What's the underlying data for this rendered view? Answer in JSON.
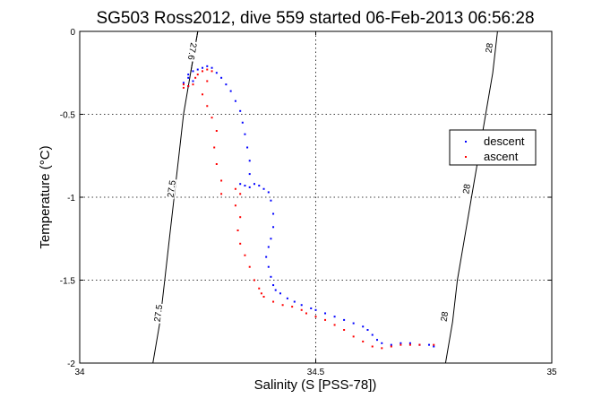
{
  "chart_data": {
    "type": "scatter",
    "title": "SG503 Ross2012, dive 559 started 06-Feb-2013 06:56:28",
    "xlabel": "Salinity (S [PSS-78])",
    "ylabel": "Temperature (°C)",
    "xlim": [
      34,
      35
    ],
    "ylim": [
      -2,
      0
    ],
    "xticks": [
      "34",
      "34.5",
      "35"
    ],
    "yticks": [
      "0",
      "-0.5",
      "-1",
      "-1.5",
      "-2"
    ],
    "grid": true,
    "legend_position": "right",
    "series": [
      {
        "name": "descent",
        "color": "#0000ff",
        "points": [
          [
            34.27,
            -0.21
          ],
          [
            34.26,
            -0.22
          ],
          [
            34.25,
            -0.23
          ],
          [
            34.24,
            -0.24
          ],
          [
            34.23,
            -0.26
          ],
          [
            34.23,
            -0.28
          ],
          [
            34.24,
            -0.3
          ],
          [
            34.22,
            -0.31
          ],
          [
            34.23,
            -0.33
          ],
          [
            34.28,
            -0.22
          ],
          [
            34.29,
            -0.25
          ],
          [
            34.3,
            -0.28
          ],
          [
            34.31,
            -0.32
          ],
          [
            34.32,
            -0.36
          ],
          [
            34.33,
            -0.42
          ],
          [
            34.34,
            -0.48
          ],
          [
            34.345,
            -0.55
          ],
          [
            34.35,
            -0.62
          ],
          [
            34.355,
            -0.7
          ],
          [
            34.36,
            -0.78
          ],
          [
            34.36,
            -0.86
          ],
          [
            34.34,
            -0.92
          ],
          [
            34.35,
            -0.93
          ],
          [
            34.36,
            -0.94
          ],
          [
            34.37,
            -0.92
          ],
          [
            34.38,
            -0.93
          ],
          [
            34.39,
            -0.95
          ],
          [
            34.4,
            -0.97
          ],
          [
            34.405,
            -1.02
          ],
          [
            34.41,
            -1.1
          ],
          [
            34.41,
            -1.18
          ],
          [
            34.405,
            -1.25
          ],
          [
            34.4,
            -1.3
          ],
          [
            34.395,
            -1.36
          ],
          [
            34.4,
            -1.42
          ],
          [
            34.405,
            -1.48
          ],
          [
            34.41,
            -1.53
          ],
          [
            34.415,
            -1.56
          ],
          [
            34.425,
            -1.58
          ],
          [
            34.44,
            -1.61
          ],
          [
            34.455,
            -1.63
          ],
          [
            34.47,
            -1.65
          ],
          [
            34.49,
            -1.67
          ],
          [
            34.5,
            -1.68
          ],
          [
            34.52,
            -1.7
          ],
          [
            34.54,
            -1.72
          ],
          [
            34.56,
            -1.74
          ],
          [
            34.58,
            -1.76
          ],
          [
            34.6,
            -1.78
          ],
          [
            34.61,
            -1.8
          ],
          [
            34.62,
            -1.83
          ],
          [
            34.63,
            -1.86
          ],
          [
            34.64,
            -1.88
          ],
          [
            34.66,
            -1.89
          ],
          [
            34.68,
            -1.88
          ],
          [
            34.7,
            -1.88
          ],
          [
            34.72,
            -1.89
          ],
          [
            34.74,
            -1.89
          ],
          [
            34.75,
            -1.9
          ]
        ]
      },
      {
        "name": "ascent",
        "color": "#ff0000",
        "points": [
          [
            34.22,
            -0.32
          ],
          [
            34.22,
            -0.34
          ],
          [
            34.23,
            -0.33
          ],
          [
            34.24,
            -0.32
          ],
          [
            34.245,
            -0.28
          ],
          [
            34.25,
            -0.26
          ],
          [
            34.26,
            -0.24
          ],
          [
            34.27,
            -0.23
          ],
          [
            34.28,
            -0.24
          ],
          [
            34.27,
            -0.3
          ],
          [
            34.26,
            -0.38
          ],
          [
            34.27,
            -0.45
          ],
          [
            34.28,
            -0.52
          ],
          [
            34.29,
            -0.6
          ],
          [
            34.285,
            -0.7
          ],
          [
            34.29,
            -0.8
          ],
          [
            34.3,
            -0.9
          ],
          [
            34.3,
            -0.98
          ],
          [
            34.33,
            -0.95
          ],
          [
            34.34,
            -0.98
          ],
          [
            34.33,
            -1.05
          ],
          [
            34.34,
            -1.12
          ],
          [
            34.335,
            -1.2
          ],
          [
            34.34,
            -1.28
          ],
          [
            34.35,
            -1.35
          ],
          [
            34.36,
            -1.42
          ],
          [
            34.37,
            -1.5
          ],
          [
            34.38,
            -1.55
          ],
          [
            34.385,
            -1.58
          ],
          [
            34.39,
            -1.6
          ],
          [
            34.41,
            -1.63
          ],
          [
            34.43,
            -1.65
          ],
          [
            34.45,
            -1.66
          ],
          [
            34.47,
            -1.68
          ],
          [
            34.48,
            -1.7
          ],
          [
            34.5,
            -1.72
          ],
          [
            34.52,
            -1.74
          ],
          [
            34.54,
            -1.77
          ],
          [
            34.56,
            -1.8
          ],
          [
            34.58,
            -1.84
          ],
          [
            34.6,
            -1.87
          ],
          [
            34.62,
            -1.9
          ],
          [
            34.64,
            -1.91
          ],
          [
            34.66,
            -1.9
          ],
          [
            34.68,
            -1.89
          ],
          [
            34.7,
            -1.89
          ],
          [
            34.72,
            -1.89
          ],
          [
            34.75,
            -1.89
          ]
        ]
      }
    ],
    "contours": [
      {
        "label": "27.5",
        "points": [
          [
            34.155,
            -2
          ],
          [
            34.17,
            -1.75
          ],
          [
            34.18,
            -1.5
          ],
          [
            34.19,
            -1.25
          ],
          [
            34.2,
            -1
          ],
          [
            34.21,
            -0.75
          ],
          [
            34.22,
            -0.5
          ],
          [
            34.235,
            -0.25
          ],
          [
            34.25,
            0
          ]
        ],
        "label_positions": [
          [
            34.167,
            -1.7
          ],
          [
            34.195,
            -0.95
          ]
        ]
      },
      {
        "label": "27.6",
        "points": [
          [
            34.25,
            0
          ],
          [
            34.235,
            -0.25
          ]
        ],
        "label_positions": [
          [
            34.238,
            -0.12
          ]
        ]
      },
      {
        "label": "28",
        "points": [
          [
            34.775,
            -2
          ],
          [
            34.79,
            -1.75
          ],
          [
            34.8,
            -1.5
          ],
          [
            34.815,
            -1.25
          ],
          [
            34.83,
            -1
          ],
          [
            34.845,
            -0.75
          ],
          [
            34.86,
            -0.5
          ],
          [
            34.875,
            -0.25
          ],
          [
            34.885,
            0
          ]
        ],
        "label_positions": [
          [
            34.773,
            -1.72
          ],
          [
            34.82,
            -0.95
          ],
          [
            34.868,
            -0.1
          ]
        ]
      }
    ]
  }
}
